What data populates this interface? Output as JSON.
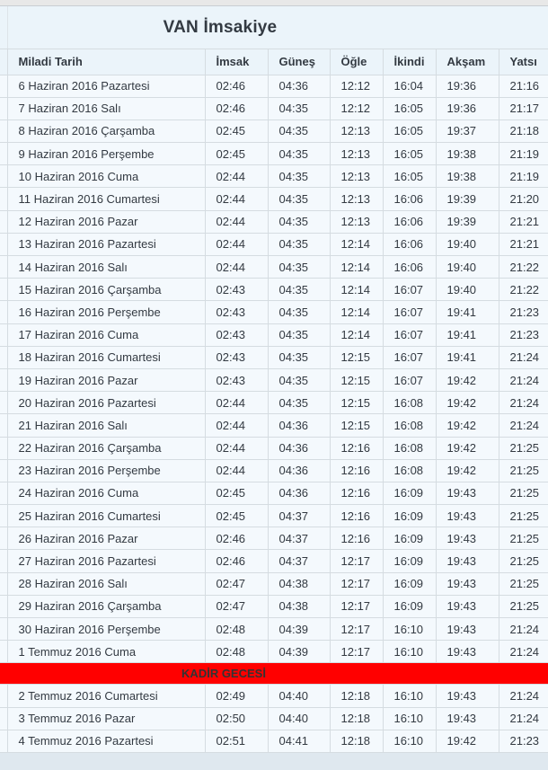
{
  "header": {
    "title": "VAN İmsakiye"
  },
  "table": {
    "columns": [
      "Miladi Tarih",
      "İmsak",
      "Güneş",
      "Öğle",
      "İkindi",
      "Akşam",
      "Yatsı"
    ],
    "rows": [
      [
        "6 Haziran 2016 Pazartesi",
        "02:46",
        "04:36",
        "12:12",
        "16:04",
        "19:36",
        "21:16"
      ],
      [
        "7 Haziran 2016 Salı",
        "02:46",
        "04:35",
        "12:12",
        "16:05",
        "19:36",
        "21:17"
      ],
      [
        "8 Haziran 2016 Çarşamba",
        "02:45",
        "04:35",
        "12:13",
        "16:05",
        "19:37",
        "21:18"
      ],
      [
        "9 Haziran 2016 Perşembe",
        "02:45",
        "04:35",
        "12:13",
        "16:05",
        "19:38",
        "21:19"
      ],
      [
        "10 Haziran 2016 Cuma",
        "02:44",
        "04:35",
        "12:13",
        "16:05",
        "19:38",
        "21:19"
      ],
      [
        "11 Haziran 2016 Cumartesi",
        "02:44",
        "04:35",
        "12:13",
        "16:06",
        "19:39",
        "21:20"
      ],
      [
        "12 Haziran 2016 Pazar",
        "02:44",
        "04:35",
        "12:13",
        "16:06",
        "19:39",
        "21:21"
      ],
      [
        "13 Haziran 2016 Pazartesi",
        "02:44",
        "04:35",
        "12:14",
        "16:06",
        "19:40",
        "21:21"
      ],
      [
        "14 Haziran 2016 Salı",
        "02:44",
        "04:35",
        "12:14",
        "16:06",
        "19:40",
        "21:22"
      ],
      [
        "15 Haziran 2016 Çarşamba",
        "02:43",
        "04:35",
        "12:14",
        "16:07",
        "19:40",
        "21:22"
      ],
      [
        "16 Haziran 2016 Perşembe",
        "02:43",
        "04:35",
        "12:14",
        "16:07",
        "19:41",
        "21:23"
      ],
      [
        "17 Haziran 2016 Cuma",
        "02:43",
        "04:35",
        "12:14",
        "16:07",
        "19:41",
        "21:23"
      ],
      [
        "18 Haziran 2016 Cumartesi",
        "02:43",
        "04:35",
        "12:15",
        "16:07",
        "19:41",
        "21:24"
      ],
      [
        "19 Haziran 2016 Pazar",
        "02:43",
        "04:35",
        "12:15",
        "16:07",
        "19:42",
        "21:24"
      ],
      [
        "20 Haziran 2016 Pazartesi",
        "02:44",
        "04:35",
        "12:15",
        "16:08",
        "19:42",
        "21:24"
      ],
      [
        "21 Haziran 2016 Salı",
        "02:44",
        "04:36",
        "12:15",
        "16:08",
        "19:42",
        "21:24"
      ],
      [
        "22 Haziran 2016 Çarşamba",
        "02:44",
        "04:36",
        "12:16",
        "16:08",
        "19:42",
        "21:25"
      ],
      [
        "23 Haziran 2016 Perşembe",
        "02:44",
        "04:36",
        "12:16",
        "16:08",
        "19:42",
        "21:25"
      ],
      [
        "24 Haziran 2016 Cuma",
        "02:45",
        "04:36",
        "12:16",
        "16:09",
        "19:43",
        "21:25"
      ],
      [
        "25 Haziran 2016 Cumartesi",
        "02:45",
        "04:37",
        "12:16",
        "16:09",
        "19:43",
        "21:25"
      ],
      [
        "26 Haziran 2016 Pazar",
        "02:46",
        "04:37",
        "12:16",
        "16:09",
        "19:43",
        "21:25"
      ],
      [
        "27 Haziran 2016 Pazartesi",
        "02:46",
        "04:37",
        "12:17",
        "16:09",
        "19:43",
        "21:25"
      ],
      [
        "28 Haziran 2016 Salı",
        "02:47",
        "04:38",
        "12:17",
        "16:09",
        "19:43",
        "21:25"
      ],
      [
        "29 Haziran 2016 Çarşamba",
        "02:47",
        "04:38",
        "12:17",
        "16:09",
        "19:43",
        "21:25"
      ],
      [
        "30 Haziran 2016 Perşembe",
        "02:48",
        "04:39",
        "12:17",
        "16:10",
        "19:43",
        "21:24"
      ],
      [
        "1 Temmuz 2016 Cuma",
        "02:48",
        "04:39",
        "12:17",
        "16:10",
        "19:43",
        "21:24"
      ],
      [
        "2 Temmuz 2016 Cumartesi",
        "02:49",
        "04:40",
        "12:18",
        "16:10",
        "19:43",
        "21:24"
      ],
      [
        "3 Temmuz 2016 Pazar",
        "02:50",
        "04:40",
        "12:18",
        "16:10",
        "19:43",
        "21:24"
      ],
      [
        "4 Temmuz 2016 Pazartesi",
        "02:51",
        "04:41",
        "12:18",
        "16:10",
        "19:42",
        "21:23"
      ]
    ],
    "special_row": {
      "label": "KADİR GECESİ",
      "after_index": 25,
      "background": "#ff0000"
    }
  },
  "colors": {
    "special_row_bg": "#ff0000",
    "panel_bg": "#ebf4fa",
    "row_bg": "#f4f9fd",
    "border": "#d5dce1",
    "text": "#333a42"
  }
}
